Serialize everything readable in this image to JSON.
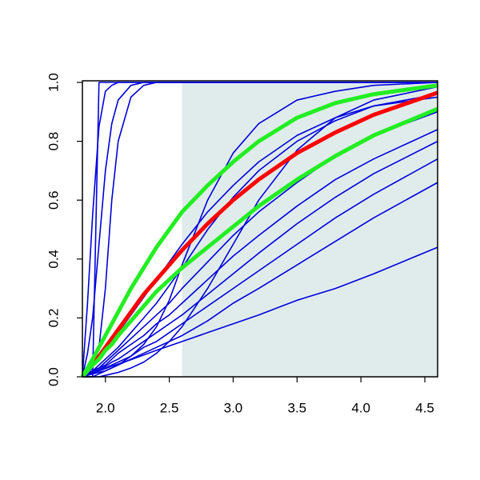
{
  "chart_data": {
    "type": "line",
    "x": [
      1.82,
      1.86,
      1.9,
      1.95,
      2.0,
      2.05,
      2.1,
      2.2,
      2.3,
      2.4,
      2.5,
      2.6,
      2.8,
      3.0,
      3.2,
      3.5,
      3.8,
      4.1,
      4.6
    ],
    "xlim": [
      1.82,
      4.6
    ],
    "ylim": [
      0,
      1
    ],
    "xticks": [
      {
        "value": 2.0,
        "label": "2.0"
      },
      {
        "value": 2.5,
        "label": "2.5"
      },
      {
        "value": 3.0,
        "label": "3.0"
      },
      {
        "value": 3.5,
        "label": "3.5"
      },
      {
        "value": 4.0,
        "label": "4.0"
      },
      {
        "value": 4.5,
        "label": "4.5"
      }
    ],
    "yticks": [
      {
        "value": 0,
        "label": "0.0"
      },
      {
        "value": 0.2,
        "label": "0.2"
      },
      {
        "value": 0.4,
        "label": "0.4"
      },
      {
        "value": 0.6,
        "label": "0.6"
      },
      {
        "value": 0.8,
        "label": "0.8"
      },
      {
        "value": 1,
        "label": "1.0"
      }
    ],
    "shade": {
      "x": [
        2.6,
        4.6
      ],
      "y": [
        0,
        1
      ],
      "color": "#e0ecec"
    },
    "series": [
      {
        "color": "#0000dd",
        "width": 1.6,
        "values": [
          0,
          0,
          0,
          1,
          1,
          1,
          1,
          1,
          1,
          1,
          1,
          1,
          1,
          1,
          1,
          1,
          1,
          1,
          1
        ]
      },
      {
        "color": "#0000dd",
        "width": 1.6,
        "values": [
          0,
          0.25,
          0.55,
          0.85,
          0.97,
          0.99,
          1,
          1,
          1,
          1,
          1,
          1,
          1,
          1,
          1,
          1,
          1,
          1,
          1
        ]
      },
      {
        "color": "#0000dd",
        "width": 1.6,
        "values": [
          0,
          0.08,
          0.2,
          0.45,
          0.7,
          0.86,
          0.94,
          0.99,
          1,
          1,
          1,
          1,
          1,
          1,
          1,
          1,
          1,
          1,
          1
        ]
      },
      {
        "color": "#0000dd",
        "width": 1.6,
        "values": [
          0,
          0.01,
          0.03,
          0.1,
          0.3,
          0.6,
          0.8,
          0.95,
          0.99,
          1,
          1,
          1,
          1,
          1,
          1,
          1,
          1,
          1,
          1
        ]
      },
      {
        "color": "#0000dd",
        "width": 1.6,
        "values": [
          0,
          0,
          0,
          0.01,
          0.02,
          0.03,
          0.04,
          0.07,
          0.11,
          0.17,
          0.26,
          0.38,
          0.6,
          0.76,
          0.86,
          0.94,
          0.97,
          0.99,
          1
        ]
      },
      {
        "color": "#0000dd",
        "width": 1.6,
        "values": [
          0,
          0.01,
          0.02,
          0.04,
          0.06,
          0.08,
          0.1,
          0.15,
          0.2,
          0.25,
          0.31,
          0.37,
          0.5,
          0.61,
          0.7,
          0.8,
          0.87,
          0.92,
          0.96
        ]
      },
      {
        "color": "#0000dd",
        "width": 1.6,
        "values": [
          0,
          0.01,
          0.02,
          0.03,
          0.05,
          0.07,
          0.09,
          0.13,
          0.17,
          0.21,
          0.25,
          0.3,
          0.39,
          0.48,
          0.56,
          0.66,
          0.75,
          0.82,
          0.9
        ]
      },
      {
        "color": "#0000dd",
        "width": 1.6,
        "values": [
          0,
          0.01,
          0.02,
          0.03,
          0.04,
          0.06,
          0.08,
          0.11,
          0.14,
          0.18,
          0.21,
          0.25,
          0.33,
          0.41,
          0.48,
          0.58,
          0.67,
          0.74,
          0.84
        ]
      },
      {
        "color": "#0000dd",
        "width": 1.6,
        "values": [
          0,
          0.01,
          0.015,
          0.025,
          0.035,
          0.05,
          0.06,
          0.09,
          0.12,
          0.15,
          0.18,
          0.21,
          0.28,
          0.35,
          0.42,
          0.52,
          0.61,
          0.69,
          0.8
        ]
      },
      {
        "color": "#0000dd",
        "width": 1.6,
        "values": [
          0,
          0.005,
          0.01,
          0.02,
          0.03,
          0.04,
          0.05,
          0.07,
          0.1,
          0.12,
          0.15,
          0.18,
          0.24,
          0.3,
          0.36,
          0.45,
          0.54,
          0.62,
          0.74
        ]
      },
      {
        "color": "#0000dd",
        "width": 1.6,
        "values": [
          0,
          0.005,
          0.01,
          0.015,
          0.02,
          0.03,
          0.04,
          0.06,
          0.08,
          0.1,
          0.12,
          0.14,
          0.19,
          0.25,
          0.3,
          0.38,
          0.46,
          0.54,
          0.66
        ]
      },
      {
        "color": "#0000dd",
        "width": 1.6,
        "values": [
          0,
          0.006,
          0.013,
          0.02,
          0.028,
          0.036,
          0.043,
          0.058,
          0.074,
          0.09,
          0.105,
          0.12,
          0.15,
          0.18,
          0.21,
          0.26,
          0.3,
          0.35,
          0.44
        ]
      },
      {
        "color": "#0000dd",
        "width": 1.6,
        "values": [
          0,
          0,
          0,
          0,
          0.005,
          0.01,
          0.015,
          0.03,
          0.05,
          0.08,
          0.12,
          0.17,
          0.3,
          0.45,
          0.6,
          0.77,
          0.88,
          0.94,
          0.985
        ]
      },
      {
        "color": "#0000dd",
        "width": 1.6,
        "values": [
          0,
          0.02,
          0.04,
          0.06,
          0.09,
          0.12,
          0.15,
          0.21,
          0.27,
          0.33,
          0.39,
          0.45,
          0.56,
          0.65,
          0.73,
          0.82,
          0.88,
          0.92,
          0.95
        ]
      },
      {
        "color": "#ff0000",
        "width": 5,
        "values": [
          0,
          0.02,
          0.04,
          0.07,
          0.1,
          0.13,
          0.16,
          0.22,
          0.28,
          0.33,
          0.38,
          0.43,
          0.52,
          0.6,
          0.67,
          0.76,
          0.83,
          0.89,
          0.965
        ]
      },
      {
        "color": "#22ee22",
        "width": 5,
        "values": [
          0,
          0.03,
          0.06,
          0.1,
          0.14,
          0.18,
          0.22,
          0.3,
          0.37,
          0.44,
          0.5,
          0.56,
          0.65,
          0.73,
          0.8,
          0.88,
          0.93,
          0.96,
          0.99
        ]
      },
      {
        "color": "#22ee22",
        "width": 5,
        "values": [
          0,
          0.02,
          0.04,
          0.06,
          0.09,
          0.11,
          0.14,
          0.19,
          0.24,
          0.29,
          0.33,
          0.37,
          0.44,
          0.51,
          0.58,
          0.67,
          0.75,
          0.82,
          0.91
        ]
      }
    ]
  }
}
